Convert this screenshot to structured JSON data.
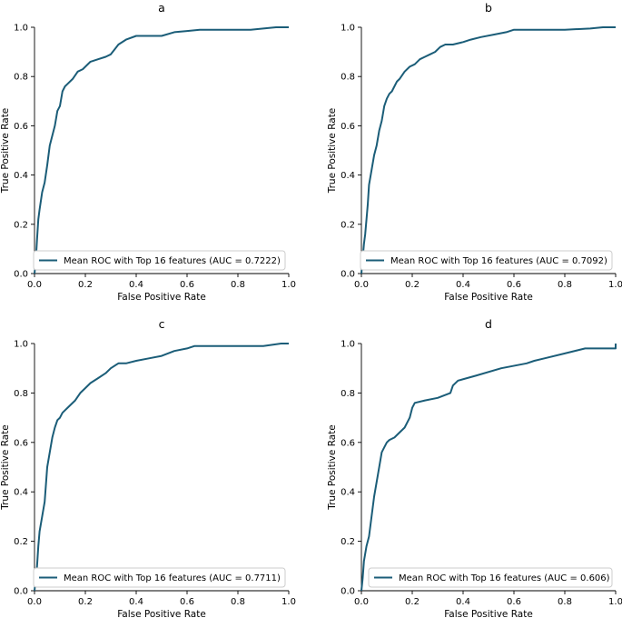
{
  "chart_data": [
    {
      "type": "line",
      "title": "a",
      "xlabel": "False Positive Rate",
      "ylabel": "True Positive Rate",
      "xlim": [
        0,
        1
      ],
      "ylim": [
        0,
        1
      ],
      "xticks": [
        "0.0",
        "0.2",
        "0.4",
        "0.6",
        "0.8",
        "1.0"
      ],
      "yticks": [
        "0.0",
        "0.2",
        "0.4",
        "0.6",
        "0.8",
        "1.0"
      ],
      "legend": "Mean ROC with Top 16 features (AUC = 0.7222)",
      "legend_position": "lower-right",
      "grid": false,
      "series": [
        {
          "name": "Mean ROC with Top 16 features (AUC = 0.7222)",
          "color": "#1b5d78",
          "x": [
            0,
            0.005,
            0.01,
            0.015,
            0.02,
            0.03,
            0.04,
            0.05,
            0.06,
            0.07,
            0.08,
            0.09,
            0.1,
            0.11,
            0.12,
            0.13,
            0.15,
            0.17,
            0.19,
            0.2,
            0.22,
            0.25,
            0.28,
            0.3,
            0.33,
            0.36,
            0.4,
            0.45,
            0.5,
            0.55,
            0.6,
            0.65,
            0.7,
            0.8,
            0.85,
            0.9,
            0.95,
            1.0
          ],
          "y": [
            0,
            0.05,
            0.14,
            0.22,
            0.26,
            0.33,
            0.37,
            0.44,
            0.52,
            0.56,
            0.6,
            0.66,
            0.68,
            0.74,
            0.76,
            0.77,
            0.79,
            0.82,
            0.83,
            0.84,
            0.86,
            0.87,
            0.88,
            0.89,
            0.93,
            0.95,
            0.965,
            0.965,
            0.965,
            0.98,
            0.985,
            0.99,
            0.99,
            0.99,
            0.99,
            0.995,
            1.0,
            1.0
          ]
        }
      ]
    },
    {
      "type": "line",
      "title": "b",
      "xlabel": "False Positive Rate",
      "ylabel": "True Positive Rate",
      "xlim": [
        0,
        1
      ],
      "ylim": [
        0,
        1
      ],
      "xticks": [
        "0.0",
        "0.2",
        "0.4",
        "0.6",
        "0.8",
        "1.0"
      ],
      "yticks": [
        "0.0",
        "0.2",
        "0.4",
        "0.6",
        "0.8",
        "1.0"
      ],
      "legend": "Mean ROC with Top 16 features (AUC = 0.7092)",
      "legend_position": "lower-right",
      "grid": false,
      "series": [
        {
          "name": "Mean ROC with Top 16 features (AUC = 0.7092)",
          "color": "#1b5d78",
          "x": [
            0,
            0.005,
            0.01,
            0.015,
            0.02,
            0.025,
            0.03,
            0.04,
            0.05,
            0.06,
            0.07,
            0.08,
            0.09,
            0.1,
            0.11,
            0.12,
            0.13,
            0.14,
            0.15,
            0.17,
            0.19,
            0.21,
            0.23,
            0.25,
            0.27,
            0.29,
            0.31,
            0.33,
            0.36,
            0.4,
            0.43,
            0.47,
            0.52,
            0.57,
            0.6,
            0.65,
            0.7,
            0.8,
            0.9,
            0.95,
            1.0
          ],
          "y": [
            0,
            0.06,
            0.12,
            0.16,
            0.22,
            0.28,
            0.36,
            0.42,
            0.48,
            0.52,
            0.58,
            0.62,
            0.68,
            0.71,
            0.73,
            0.74,
            0.76,
            0.78,
            0.79,
            0.82,
            0.84,
            0.85,
            0.87,
            0.88,
            0.89,
            0.9,
            0.92,
            0.93,
            0.93,
            0.94,
            0.95,
            0.96,
            0.97,
            0.98,
            0.99,
            0.99,
            0.99,
            0.99,
            0.995,
            1.0,
            1.0
          ]
        }
      ]
    },
    {
      "type": "line",
      "title": "c",
      "xlabel": "False Positive Rate",
      "ylabel": "True Positive Rate",
      "xlim": [
        0,
        1
      ],
      "ylim": [
        0,
        1
      ],
      "xticks": [
        "0.0",
        "0.2",
        "0.4",
        "0.6",
        "0.8",
        "1.0"
      ],
      "yticks": [
        "0.0",
        "0.2",
        "0.4",
        "0.6",
        "0.8",
        "1.0"
      ],
      "legend": "Mean ROC with Top 16 features (AUC = 0.7711)",
      "legend_position": "lower-right",
      "grid": false,
      "series": [
        {
          "name": "Mean ROC with Top 16 features (AUC = 0.7711)",
          "color": "#1b5d78",
          "x": [
            0,
            0.005,
            0.01,
            0.015,
            0.02,
            0.03,
            0.04,
            0.05,
            0.06,
            0.07,
            0.08,
            0.09,
            0.1,
            0.11,
            0.12,
            0.14,
            0.16,
            0.18,
            0.2,
            0.22,
            0.25,
            0.28,
            0.3,
            0.33,
            0.36,
            0.4,
            0.45,
            0.5,
            0.55,
            0.6,
            0.63,
            0.7,
            0.8,
            0.9,
            0.97,
            1.0
          ],
          "y": [
            0,
            0.05,
            0.1,
            0.18,
            0.24,
            0.3,
            0.36,
            0.5,
            0.56,
            0.62,
            0.66,
            0.69,
            0.7,
            0.72,
            0.73,
            0.75,
            0.77,
            0.8,
            0.82,
            0.84,
            0.86,
            0.88,
            0.9,
            0.92,
            0.92,
            0.93,
            0.94,
            0.95,
            0.97,
            0.98,
            0.99,
            0.99,
            0.99,
            0.99,
            1.0,
            1.0
          ]
        }
      ]
    },
    {
      "type": "line",
      "title": "d",
      "xlabel": "False Positive Rate",
      "ylabel": "True Positive Rate",
      "xlim": [
        0,
        1
      ],
      "ylim": [
        0,
        1
      ],
      "xticks": [
        "0.0",
        "0.2",
        "0.4",
        "0.6",
        "0.8",
        "1.0"
      ],
      "yticks": [
        "0.0",
        "0.2",
        "0.4",
        "0.6",
        "0.8",
        "1.0"
      ],
      "legend": "Mean ROC with Top 16 features (AUC = 0.606)",
      "legend_position": "lower-right",
      "grid": false,
      "series": [
        {
          "name": "Mean ROC with Top 16 features (AUC = 0.606)",
          "color": "#1b5d78",
          "x": [
            0,
            0.005,
            0.01,
            0.02,
            0.03,
            0.04,
            0.05,
            0.06,
            0.07,
            0.08,
            0.09,
            0.1,
            0.11,
            0.13,
            0.15,
            0.17,
            0.19,
            0.2,
            0.21,
            0.25,
            0.3,
            0.35,
            0.36,
            0.38,
            0.45,
            0.55,
            0.65,
            0.68,
            0.72,
            0.8,
            0.88,
            0.95,
            1.0,
            1.0
          ],
          "y": [
            0,
            0.05,
            0.12,
            0.18,
            0.22,
            0.3,
            0.38,
            0.44,
            0.5,
            0.56,
            0.58,
            0.6,
            0.61,
            0.62,
            0.64,
            0.66,
            0.7,
            0.74,
            0.76,
            0.77,
            0.78,
            0.8,
            0.83,
            0.85,
            0.87,
            0.9,
            0.92,
            0.93,
            0.94,
            0.96,
            0.98,
            0.98,
            0.98,
            1.0
          ]
        }
      ]
    }
  ]
}
